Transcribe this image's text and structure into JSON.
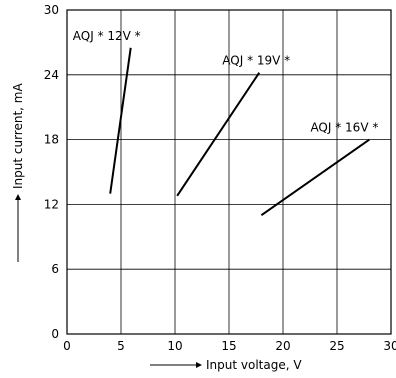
{
  "chart_data": {
    "type": "line",
    "xlabel": "Input voltage, V",
    "ylabel": "Input current, mA",
    "xlim": [
      0,
      30
    ],
    "ylim": [
      0,
      30
    ],
    "xticks": [
      0,
      5,
      10,
      15,
      20,
      25,
      30
    ],
    "yticks": [
      0,
      6,
      12,
      18,
      24,
      30
    ],
    "grid": true,
    "series": [
      {
        "name": "AQJ * 12V *",
        "x": [
          4,
          5.9
        ],
        "y": [
          13,
          26.5
        ]
      },
      {
        "name": "AQJ * 19V *",
        "x": [
          10.2,
          17.8
        ],
        "y": [
          12.8,
          24.2
        ]
      },
      {
        "name": "AQJ * 16V *",
        "x": [
          18,
          28
        ],
        "y": [
          11,
          18
        ]
      }
    ]
  }
}
